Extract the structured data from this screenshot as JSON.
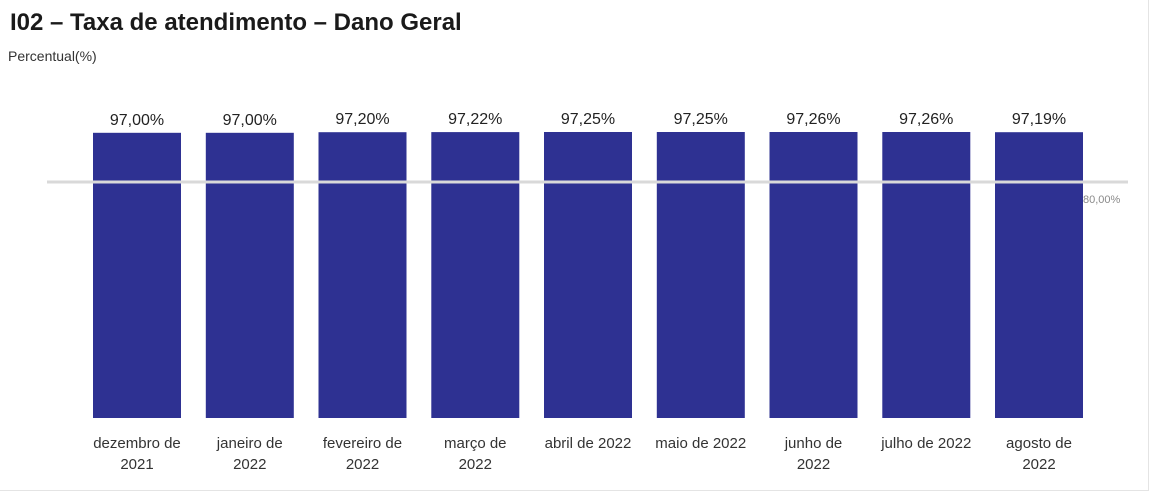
{
  "chart_data": {
    "type": "bar",
    "title": "I02 – Taxa de atendimento – Dano Geral",
    "ylabel": "Percentual(%)",
    "xlabel": "",
    "categories": [
      [
        "dezembro de",
        "2021"
      ],
      [
        "janeiro de",
        "2022"
      ],
      [
        "fevereiro de",
        "2022"
      ],
      [
        "março de",
        "2022"
      ],
      [
        "abril de 2022"
      ],
      [
        "maio de 2022"
      ],
      [
        "junho de",
        "2022"
      ],
      [
        "julho de 2022"
      ],
      [
        "agosto de",
        "2022"
      ]
    ],
    "values": [
      97.0,
      97.0,
      97.2,
      97.22,
      97.25,
      97.25,
      97.26,
      97.26,
      97.19
    ],
    "value_labels": [
      "97,00%",
      "97,00%",
      "97,20%",
      "97,22%",
      "97,25%",
      "97,25%",
      "97,26%",
      "97,26%",
      "97,19%"
    ],
    "reference_line": {
      "value": 80,
      "label": "80,00%",
      "color": "#d9d9d9"
    },
    "ylim": [
      0,
      97.26
    ],
    "bar_color": "#2e3192",
    "grid": false,
    "legend": "none"
  }
}
